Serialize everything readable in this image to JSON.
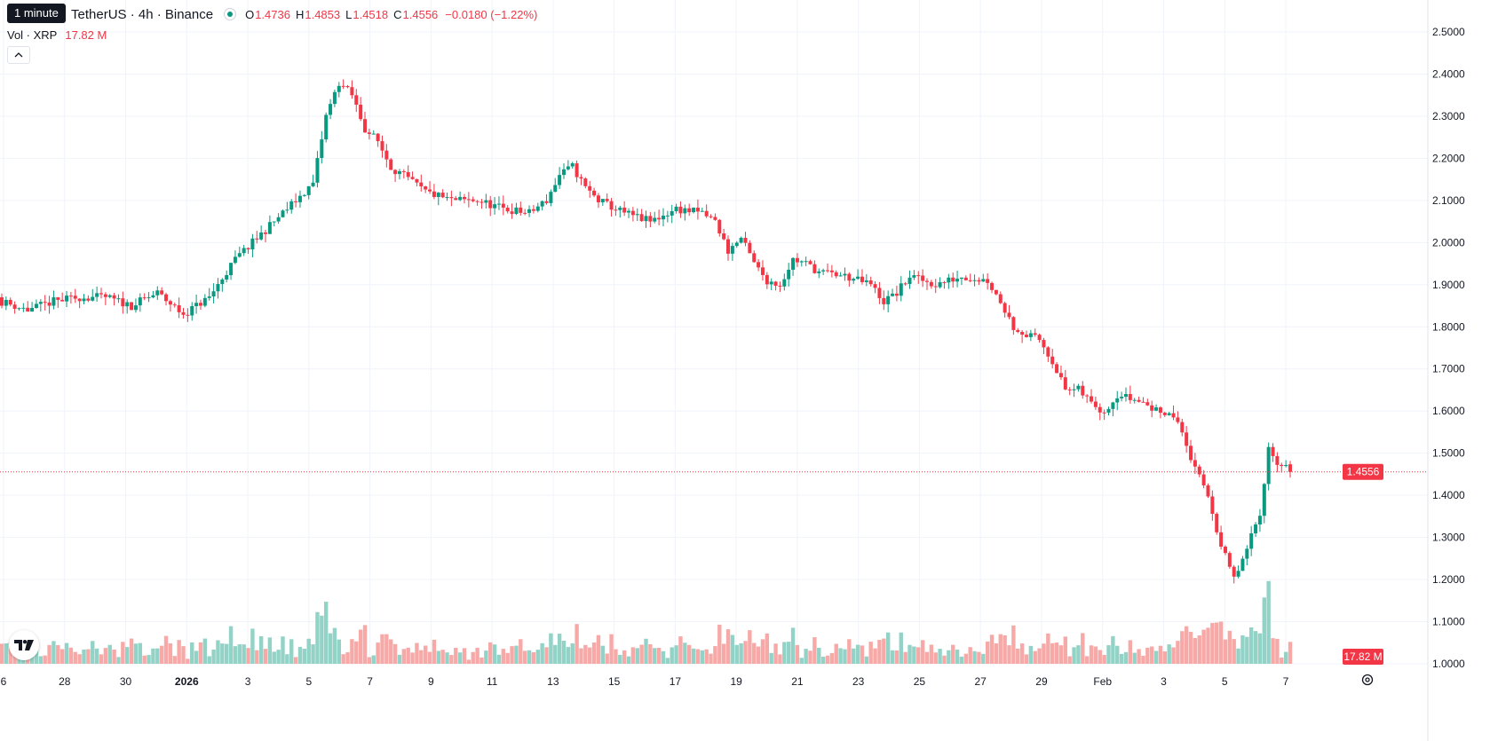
{
  "tooltip": "1 minute",
  "legend": {
    "symbol": "TetherUS · 4h · Binance",
    "open_label": "O",
    "open": "1.4736",
    "high_label": "H",
    "high": "1.4853",
    "low_label": "L",
    "low": "1.4518",
    "close_label": "C",
    "close": "1.4556",
    "change": "−0.0180 (−1.22%)"
  },
  "volume_legend": {
    "label": "Vol · XRP",
    "value": "17.82 M"
  },
  "price_badge": "1.4556",
  "volume_badge": "17.82 M",
  "colors": {
    "up": "#089981",
    "down": "#f23645",
    "up_volume": "#93d2c6",
    "down_volume": "#f7a9a7",
    "grid": "#f0f3fa"
  },
  "icons": {
    "logo": "tradingview-logo-icon",
    "collapse": "chevron-up-icon",
    "settings": "gear-icon"
  },
  "chart_data": {
    "type": "candlestick",
    "interval": "4h",
    "y_ticks": [
      "2.5000",
      "2.4000",
      "2.3000",
      "2.2000",
      "2.1000",
      "2.0000",
      "1.9000",
      "1.8000",
      "1.7000",
      "1.6000",
      "1.5000",
      "1.4000",
      "1.3000",
      "1.2000",
      "1.1000",
      "1.0000"
    ],
    "ylim": [
      1.0,
      2.5
    ],
    "x_ticks": [
      {
        "label": "6",
        "bold": false
      },
      {
        "label": "28",
        "bold": false
      },
      {
        "label": "30",
        "bold": false
      },
      {
        "label": "2026",
        "bold": true
      },
      {
        "label": "3",
        "bold": false
      },
      {
        "label": "5",
        "bold": false
      },
      {
        "label": "7",
        "bold": false
      },
      {
        "label": "9",
        "bold": false
      },
      {
        "label": "11",
        "bold": false
      },
      {
        "label": "13",
        "bold": false
      },
      {
        "label": "15",
        "bold": false
      },
      {
        "label": "17",
        "bold": false
      },
      {
        "label": "19",
        "bold": false
      },
      {
        "label": "21",
        "bold": false
      },
      {
        "label": "23",
        "bold": false
      },
      {
        "label": "25",
        "bold": false
      },
      {
        "label": "27",
        "bold": false
      },
      {
        "label": "29",
        "bold": false
      },
      {
        "label": "Feb",
        "bold": false
      },
      {
        "label": "3",
        "bold": false
      },
      {
        "label": "5",
        "bold": false
      },
      {
        "label": "7",
        "bold": false
      }
    ],
    "last_price": 1.4556,
    "close_path": [
      [
        0,
        1.86
      ],
      [
        6,
        1.84
      ],
      [
        12,
        1.86
      ],
      [
        18,
        1.87
      ],
      [
        24,
        1.87
      ],
      [
        30,
        1.85
      ],
      [
        36,
        1.88
      ],
      [
        42,
        1.83
      ],
      [
        48,
        1.87
      ],
      [
        54,
        1.96
      ],
      [
        60,
        2.02
      ],
      [
        66,
        2.08
      ],
      [
        72,
        2.14
      ],
      [
        75,
        2.3
      ],
      [
        78,
        2.38
      ],
      [
        81,
        2.35
      ],
      [
        84,
        2.27
      ],
      [
        87,
        2.24
      ],
      [
        90,
        2.18
      ],
      [
        94,
        2.15
      ],
      [
        98,
        2.12
      ],
      [
        104,
        2.1
      ],
      [
        110,
        2.1
      ],
      [
        116,
        2.08
      ],
      [
        122,
        2.07
      ],
      [
        126,
        2.1
      ],
      [
        129,
        2.16
      ],
      [
        132,
        2.18
      ],
      [
        135,
        2.13
      ],
      [
        138,
        2.1
      ],
      [
        144,
        2.07
      ],
      [
        150,
        2.05
      ],
      [
        156,
        2.08
      ],
      [
        162,
        2.07
      ],
      [
        165,
        2.05
      ],
      [
        168,
        1.98
      ],
      [
        171,
        2.01
      ],
      [
        174,
        1.95
      ],
      [
        177,
        1.91
      ],
      [
        180,
        1.9
      ],
      [
        183,
        1.96
      ],
      [
        186,
        1.95
      ],
      [
        189,
        1.93
      ],
      [
        195,
        1.92
      ],
      [
        201,
        1.9
      ],
      [
        204,
        1.86
      ],
      [
        207,
        1.88
      ],
      [
        210,
        1.92
      ],
      [
        213,
        1.91
      ],
      [
        216,
        1.9
      ],
      [
        222,
        1.92
      ],
      [
        228,
        1.91
      ],
      [
        231,
        1.86
      ],
      [
        234,
        1.8
      ],
      [
        237,
        1.78
      ],
      [
        240,
        1.77
      ],
      [
        243,
        1.72
      ],
      [
        246,
        1.65
      ],
      [
        249,
        1.65
      ],
      [
        252,
        1.62
      ],
      [
        255,
        1.6
      ],
      [
        258,
        1.64
      ],
      [
        261,
        1.63
      ],
      [
        264,
        1.62
      ],
      [
        267,
        1.6
      ],
      [
        270,
        1.6
      ],
      [
        273,
        1.55
      ],
      [
        276,
        1.46
      ],
      [
        279,
        1.4
      ],
      [
        282,
        1.28
      ],
      [
        285,
        1.2
      ],
      [
        288,
        1.27
      ],
      [
        291,
        1.36
      ],
      [
        293,
        1.51
      ],
      [
        295,
        1.48
      ],
      [
        297,
        1.47
      ],
      [
        298,
        1.4556
      ]
    ]
  }
}
